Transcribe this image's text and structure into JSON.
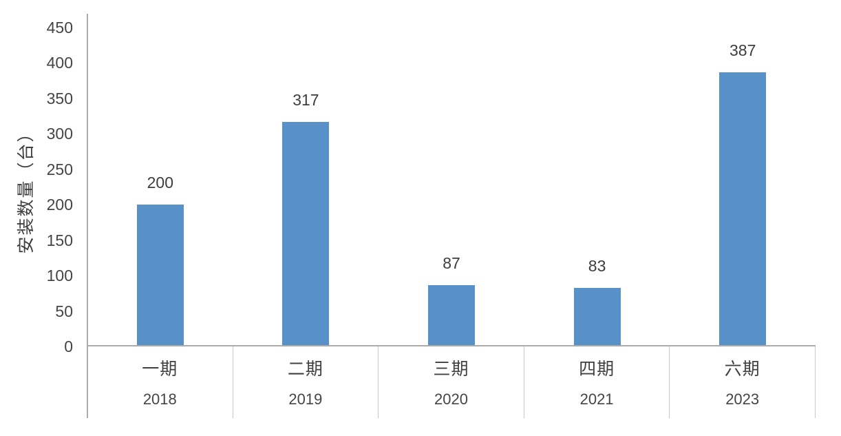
{
  "chart_data": {
    "type": "bar",
    "title": "",
    "xlabel": "",
    "ylabel": "安装数量（台）",
    "categories": [
      "一期",
      "二期",
      "三期",
      "四期",
      "六期"
    ],
    "sub_categories": [
      "2018",
      "2019",
      "2020",
      "2021",
      "2023"
    ],
    "values": [
      200,
      317,
      87,
      83,
      387
    ],
    "value_labels": [
      "200",
      "317",
      "87",
      "83",
      "387"
    ],
    "ylim": [
      0,
      450
    ],
    "ytick_step": 50,
    "ytick_labels": [
      "450",
      "400",
      "350",
      "300",
      "250",
      "200",
      "150",
      "100",
      "50",
      "0"
    ],
    "grid": "off",
    "legend": "none",
    "bar_color": "#5791C8",
    "axis_line_color": "#ABABAB",
    "divider_color": "#C9C9C9",
    "text_color": "#454545"
  }
}
